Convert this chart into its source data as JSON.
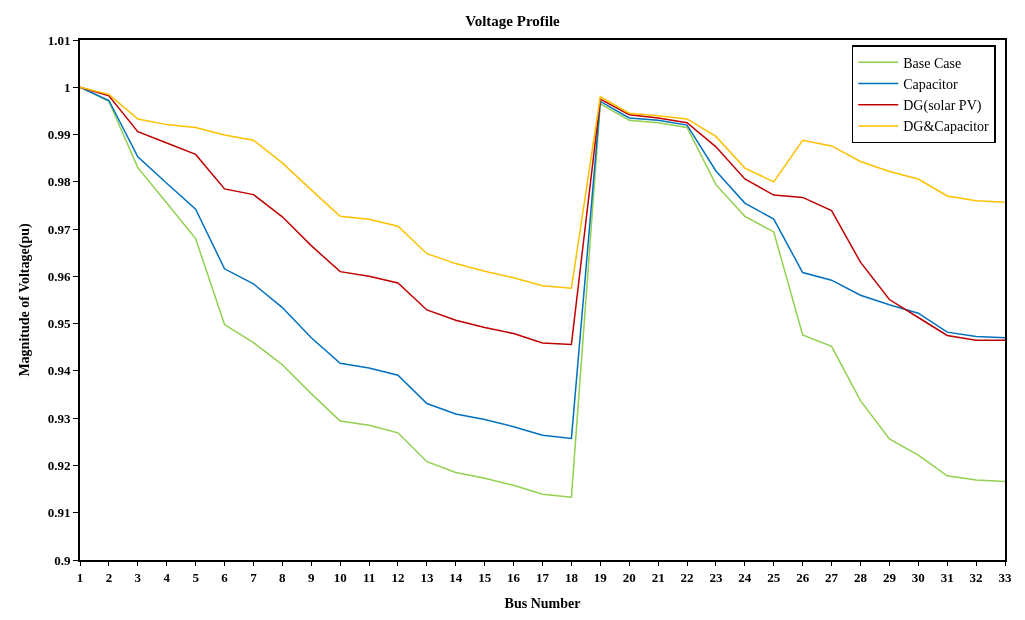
{
  "chart_data": {
    "type": "line",
    "title": "Voltage Profile",
    "xlabel": "Bus Number",
    "ylabel": "Magnitude of Voltage(pu)",
    "x": [
      1,
      2,
      3,
      4,
      5,
      6,
      7,
      8,
      9,
      10,
      11,
      12,
      13,
      14,
      15,
      16,
      17,
      18,
      19,
      20,
      21,
      22,
      23,
      24,
      25,
      26,
      27,
      28,
      29,
      30,
      31,
      32,
      33
    ],
    "xlim": [
      1,
      33
    ],
    "xticks": [
      1,
      2,
      3,
      4,
      5,
      6,
      7,
      8,
      9,
      10,
      11,
      12,
      13,
      14,
      15,
      16,
      17,
      18,
      19,
      20,
      21,
      22,
      23,
      24,
      25,
      26,
      27,
      28,
      29,
      30,
      31,
      32,
      33
    ],
    "ylim": [
      0.9,
      1.01
    ],
    "yticks": [
      0.9,
      0.91,
      0.92,
      0.93,
      0.94,
      0.95,
      0.96,
      0.97,
      0.98,
      0.99,
      1,
      1.01
    ],
    "legend": "top right",
    "marker": "none",
    "line_style": "solid",
    "series": [
      {
        "name": "Base Case",
        "color": "#92d050",
        "values": [
          1,
          0.997,
          0.983,
          0.9755,
          0.968,
          0.9498,
          0.946,
          0.9413,
          0.9352,
          0.9294,
          0.9285,
          0.9269,
          0.9208,
          0.9185,
          0.9173,
          0.9158,
          0.9139,
          0.9133,
          0.9965,
          0.993,
          0.9925,
          0.9915,
          0.9794,
          0.9727,
          0.9694,
          0.9476,
          0.9452,
          0.9337,
          0.9256,
          0.9222,
          0.9178,
          0.9169,
          0.9166
        ]
      },
      {
        "name": "Capacitor",
        "color": "#0070c0",
        "values": [
          1,
          0.9972,
          0.9853,
          0.9797,
          0.9742,
          0.9616,
          0.9584,
          0.9534,
          0.947,
          0.9416,
          0.9406,
          0.9391,
          0.9331,
          0.9309,
          0.9297,
          0.9282,
          0.9264,
          0.9257,
          0.997,
          0.9935,
          0.993,
          0.992,
          0.9823,
          0.9755,
          0.9721,
          0.9608,
          0.9592,
          0.956,
          0.954,
          0.9522,
          0.9482,
          0.9473,
          0.947
        ]
      },
      {
        "name": "DG(solar PV)",
        "color": "#c00000",
        "values": [
          1,
          0.9982,
          0.9906,
          0.9882,
          0.9858,
          0.9785,
          0.9773,
          0.9726,
          0.9665,
          0.961,
          0.96,
          0.9586,
          0.9529,
          0.9507,
          0.9492,
          0.9479,
          0.9459,
          0.9456,
          0.9975,
          0.9942,
          0.9935,
          0.9925,
          0.9874,
          0.9806,
          0.9772,
          0.9767,
          0.9739,
          0.963,
          0.9551,
          0.9513,
          0.9475,
          0.9465,
          0.9465
        ]
      },
      {
        "name": "DG&Capacitor",
        "color": "#ffc000",
        "values": [
          1,
          0.9985,
          0.9933,
          0.9921,
          0.9915,
          0.9899,
          0.9888,
          0.984,
          0.9783,
          0.9727,
          0.9721,
          0.9706,
          0.9648,
          0.9627,
          0.9611,
          0.9597,
          0.958,
          0.9575,
          0.998,
          0.9945,
          0.994,
          0.9933,
          0.9896,
          0.9829,
          0.98,
          0.9888,
          0.9876,
          0.9843,
          0.9822,
          0.9806,
          0.977,
          0.976,
          0.9757
        ]
      }
    ]
  }
}
